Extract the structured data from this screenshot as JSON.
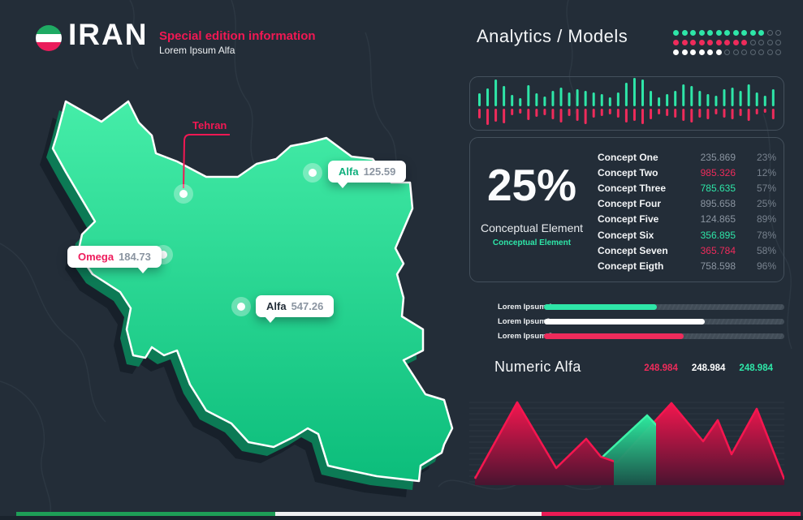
{
  "header": {
    "country": "IRAN",
    "subtitle": "Special edition information",
    "subtitle2": "Lorem Ipsum Alfa",
    "flag_colors": [
      "#1faa63",
      "#ffffff",
      "#ea1c5b"
    ]
  },
  "analytics": {
    "title": "Analytics / Models",
    "dot_grid": {
      "columns": 13,
      "rows": [
        {
          "color": "#2ee6a8",
          "filled": 11
        },
        {
          "color": "#ee2b5b",
          "filled": 9
        },
        {
          "color": "#ffffff",
          "filled": 6
        }
      ]
    }
  },
  "map": {
    "labels": {
      "tehran": {
        "name": "Tehran",
        "color": "#f11853"
      },
      "alfa1": {
        "name": "Alfa",
        "value": "125.59",
        "name_color": "#0faf7d"
      },
      "omega": {
        "name": "Omega",
        "value": "184.73",
        "name_color": "#ee1c5c"
      },
      "alfa2": {
        "name": "Alfa",
        "value": "547.26",
        "name_color": "#232d38"
      }
    },
    "fill_top": "#45eda8",
    "fill_bottom": "#0cbd7b"
  },
  "stats": {
    "percent": "25%",
    "caption": "Conceptual Element",
    "caption_sub": "Conceptual Element",
    "concepts": [
      {
        "label": "Concept One",
        "value": "235.869",
        "value_color": "#8b95a1",
        "percent": "23%"
      },
      {
        "label": "Concept Two",
        "value": "985.326",
        "value_color": "#ee2b5b",
        "percent": "12%"
      },
      {
        "label": "Concept Three",
        "value": "785.635",
        "value_color": "#2ee6a8",
        "percent": "57%"
      },
      {
        "label": "Concept Four",
        "value": "895.658",
        "value_color": "#8b95a1",
        "percent": "25%"
      },
      {
        "label": "Concept Five",
        "value": "124.865",
        "value_color": "#8b95a1",
        "percent": "89%"
      },
      {
        "label": "Concept Six",
        "value": "356.895",
        "value_color": "#2ee6a8",
        "percent": "78%"
      },
      {
        "label": "Concept Seven",
        "value": "365.784",
        "value_color": "#ee2b5b",
        "percent": "58%"
      },
      {
        "label": "Concept Eigth",
        "value": "758.598",
        "value_color": "#8b95a1",
        "percent": "96%"
      }
    ]
  },
  "progress": [
    {
      "label": "Lorem Ipsum 1",
      "percent": 47,
      "color": "#2ee6a8"
    },
    {
      "label": "Lorem Ipsum2",
      "percent": 67,
      "color": "#ffffff"
    },
    {
      "label": "Lorem Ipsum 3",
      "percent": 58,
      "color": "#ee2b5b"
    }
  ],
  "numeric": {
    "title": "Numeric Alfa",
    "values": [
      {
        "text": "248.984",
        "color": "#ee2b5b"
      },
      {
        "text": "248.984",
        "color": "#ffffff"
      },
      {
        "text": "248.984",
        "color": "#2ee6a8"
      }
    ]
  },
  "chart_data": [
    {
      "type": "bar",
      "name": "waveform-bars",
      "description": "mirrored bar chart, green bars up / red bars down from center line, no axes",
      "up_color": "#2ee6a8",
      "down_color": "#ee2b5b",
      "up": [
        16,
        22,
        33,
        25,
        14,
        10,
        26,
        16,
        12,
        19,
        23,
        17,
        21,
        19,
        17,
        15,
        11,
        17,
        29,
        35,
        33,
        19,
        11,
        15,
        19,
        27,
        25,
        19,
        15,
        13,
        21,
        23,
        19,
        27,
        17,
        13,
        21
      ],
      "down": [
        12,
        20,
        16,
        18,
        8,
        6,
        14,
        10,
        8,
        13,
        17,
        9,
        15,
        19,
        11,
        9,
        7,
        11,
        17,
        15,
        19,
        13,
        7,
        9,
        11,
        15,
        17,
        11,
        13,
        7,
        11,
        13,
        9,
        15,
        7,
        5,
        13
      ]
    },
    {
      "type": "area",
      "name": "mountain-area-chart",
      "description": "two overlapping area series, px coords in 388x108 viewBox, y=108 baseline, grid on, no axis labels",
      "series": [
        {
          "name": "green",
          "stroke": "#3df2a8",
          "fill_top": "#2ef0a2",
          "fill_bottom": "#17554a",
          "points": [
            [
              7,
              99
            ],
            [
              60,
              57
            ],
            [
              107,
              96
            ],
            [
              142,
              69
            ],
            [
              160,
              77
            ],
            [
              219,
              22
            ],
            [
              282,
              89
            ],
            [
              302,
              66
            ],
            [
              322,
              77
            ],
            [
              354,
              32
            ],
            [
              388,
              102
            ]
          ]
        },
        {
          "name": "red",
          "stroke": "#f4164f",
          "fill_top": "#f4164f",
          "fill_bottom": "#4a1430",
          "points": [
            [
              7,
              100
            ],
            [
              59,
              6
            ],
            [
              107,
              87
            ],
            [
              144,
              51
            ],
            [
              162,
              73
            ],
            [
              182,
              80
            ],
            [
              249,
              7
            ],
            [
              288,
              54
            ],
            [
              306,
              28
            ],
            [
              323,
              70
            ],
            [
              354,
              14
            ],
            [
              388,
              101
            ]
          ]
        }
      ]
    }
  ],
  "footer": {
    "stripe_colors": [
      "#1e9e57",
      "#eef0f1",
      "#ea1b55"
    ]
  }
}
